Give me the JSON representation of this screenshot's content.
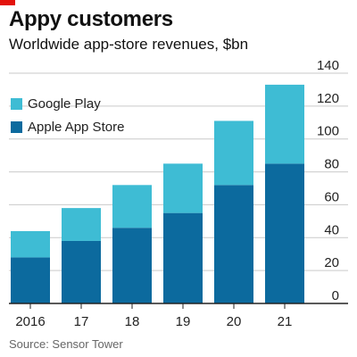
{
  "header": {
    "title": "Appy customers",
    "subtitle": "Worldwide app-store revenues, $bn"
  },
  "source": "Source: Sensor Tower",
  "colors": {
    "accent": "#e3120b",
    "google_play": "#3ebcd4",
    "apple_app_store": "#0c6a9e",
    "grid": "#c9c9c9",
    "axis": "#222222"
  },
  "chart_data": {
    "type": "bar",
    "stacked": true,
    "categories": [
      "2016",
      "17",
      "18",
      "19",
      "20",
      "21"
    ],
    "series": [
      {
        "name": "Apple App Store",
        "values": [
          28,
          38,
          46,
          55,
          72,
          85
        ]
      },
      {
        "name": "Google Play",
        "values": [
          16,
          20,
          26,
          30,
          39,
          48
        ]
      }
    ],
    "ylim": [
      0,
      140
    ],
    "yticks": [
      0,
      20,
      40,
      60,
      80,
      100,
      120,
      140
    ],
    "y_axis_side": "right",
    "grid": true,
    "legend_position": "top-left"
  }
}
